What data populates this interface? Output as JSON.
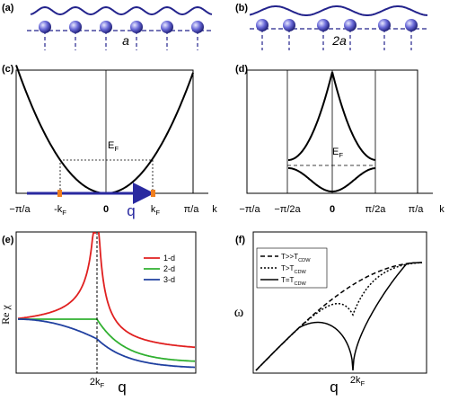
{
  "panels": {
    "a": {
      "label": "(a)",
      "spacing": "a"
    },
    "b": {
      "label": "(b)",
      "spacing": "2a"
    },
    "c": {
      "label": "(c)",
      "fermi_level": {
        "main": "E",
        "sub": "F"
      },
      "x_labels": [
        "−π/a",
        {
          "main": "-k",
          "sub": "F"
        },
        "0",
        "q",
        {
          "main": "k",
          "sub": "F"
        },
        "π/a"
      ],
      "axis_label": "k"
    },
    "d": {
      "label": "(d)",
      "fermi_level": {
        "main": "E",
        "sub": "F"
      },
      "x_labels": [
        "−π/a",
        "−π/2a",
        "0",
        "π/2a",
        "π/a"
      ],
      "axis_label": "k"
    },
    "e": {
      "label": "(e)",
      "y_label": "Re χ",
      "x_label": "q",
      "marker": {
        "main": "2k",
        "sub": "F"
      },
      "legend": [
        "1-d",
        "2-d",
        "3-d"
      ]
    },
    "f": {
      "label": "(f)",
      "y_label": "ω",
      "x_label": "q",
      "marker": {
        "main": "2k",
        "sub": "F"
      },
      "legend": [
        {
          "main": "T>>T",
          "sub": "CDW"
        },
        {
          "main": "T>T",
          "sub": "CDW"
        },
        {
          "main": "T=T",
          "sub": "CDW"
        }
      ]
    }
  }
}
